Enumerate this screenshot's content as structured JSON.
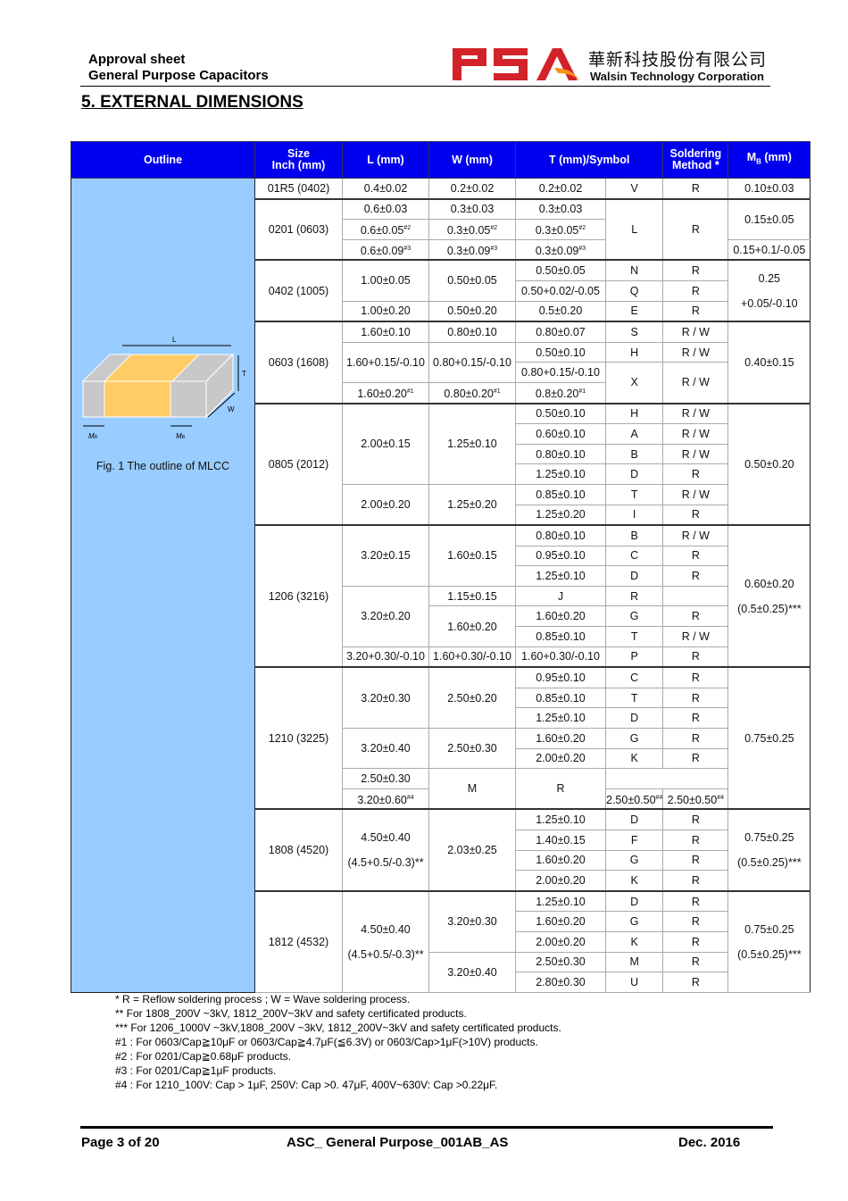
{
  "header": {
    "line1": "Approval sheet",
    "line2": "General Purpose Capacitors",
    "logo_text": "PSA",
    "company_cn": "華新科技股份有限公司",
    "company_en": "Walsin Technology Corporation"
  },
  "section_title": "5. EXTERNAL DIMENSIONS",
  "columns": {
    "outline": "Outline",
    "size1": "Size",
    "size2": "Inch (mm)",
    "L": "L (mm)",
    "W": "W (mm)",
    "T": "T (mm)/Symbol",
    "sold1": "Soldering",
    "sold2": "Method *",
    "mb": "M",
    "mb_sub": "B",
    "mb_unit": " (mm)"
  },
  "figure": {
    "caption": "Fig. 1 The outline of MLCC",
    "label_L": "L",
    "label_T": "T",
    "label_W": "W",
    "label_MB": "M",
    "label_MB_sub": "B"
  },
  "groups": [
    {
      "s": [
        {
          "t": "01R5 (0402)"
        }
      ],
      "L": [
        {
          "t": "0.4±0.02"
        }
      ],
      "W": [
        {
          "t": "0.2±0.02"
        }
      ],
      "T": [
        {
          "t": "0.2±0.02"
        }
      ],
      "Y": [
        {
          "t": "V"
        }
      ],
      "M": [
        {
          "t": "R"
        }
      ],
      "B": [
        {
          "t": "0.10±0.03"
        }
      ]
    },
    {
      "s": [
        {
          "t": "0201 (0603)"
        }
      ],
      "L": [
        {
          "t": "0.6±0.03"
        },
        {
          "t": "0.6±0.05",
          "n": "#2"
        },
        {
          "t": "0.6±0.09",
          "n": "#3"
        }
      ],
      "W": [
        {
          "t": "0.3±0.03"
        },
        {
          "t": "0.3±0.05",
          "n": "#2"
        },
        {
          "t": "0.3±0.09",
          "n": "#3"
        }
      ],
      "T": [
        {
          "t": "0.3±0.03"
        },
        {
          "t": "0.3±0.05",
          "n": "#2"
        },
        {
          "t": "0.3±0.09",
          "n": "#3"
        }
      ],
      "Y": [
        {
          "t": "L"
        }
      ],
      "M": [
        {
          "t": "R"
        }
      ],
      "B": [
        {
          "t": "0.15±0.05"
        },
        {
          "t": "0.15+0.1/-0.05"
        }
      ]
    },
    {
      "s": [
        {
          "t": "0402 (1005)"
        }
      ],
      "L": [
        {
          "t": "1.00±0.05"
        },
        {
          "t": "1.00±0.20"
        }
      ],
      "W": [
        {
          "t": "0.50±0.05"
        },
        {
          "t": "0.50±0.20"
        }
      ],
      "T": [
        {
          "t": "0.50±0.05"
        },
        {
          "t": "0.50+0.02/-0.05"
        },
        {
          "t": "0.5±0.20"
        }
      ],
      "Y": [
        {
          "t": "N"
        },
        {
          "t": "Q"
        },
        {
          "t": "E"
        }
      ],
      "M": [
        {
          "t": "R"
        },
        {
          "t": "R"
        },
        {
          "t": "R"
        }
      ],
      "B": [
        {
          "t": "0.25",
          "t2": "+0.05/-0.10"
        }
      ]
    },
    {
      "s": [
        {
          "t": "0603 (1608)"
        }
      ],
      "L": [
        {
          "t": "1.60±0.10"
        },
        {
          "t": "1.60+0.15/-0.10"
        },
        {
          "t": "1.60±0.20",
          "n": "#1"
        }
      ],
      "W": [
        {
          "t": "0.80±0.10"
        },
        {
          "t": "0.80+0.15/-0.10"
        },
        {
          "t": "0.80±0.20",
          "n": "#1"
        }
      ],
      "T": [
        {
          "t": "0.80±0.07"
        },
        {
          "t": "0.50±0.10"
        },
        {
          "t": "0.80+0.15/-0.10"
        },
        {
          "t": "0.8±0.20",
          "n": "#1"
        }
      ],
      "Y": [
        {
          "t": "S"
        },
        {
          "t": "H"
        },
        {
          "t": "X"
        }
      ],
      "M": [
        {
          "t": "R / W"
        },
        {
          "t": "R / W"
        },
        {
          "t": "R / W"
        }
      ],
      "B": [
        {
          "t": "0.40±0.15"
        }
      ]
    },
    {
      "s": [
        {
          "t": "0805 (2012)"
        }
      ],
      "L": [
        {
          "t": "2.00±0.15"
        },
        {
          "t": "2.00±0.20"
        }
      ],
      "W": [
        {
          "t": "1.25±0.10"
        },
        {
          "t": "1.25±0.20"
        }
      ],
      "T": [
        {
          "t": "0.50±0.10"
        },
        {
          "t": "0.60±0.10"
        },
        {
          "t": "0.80±0.10"
        },
        {
          "t": "1.25±0.10"
        },
        {
          "t": "0.85±0.10"
        },
        {
          "t": "1.25±0.20"
        }
      ],
      "Y": [
        {
          "t": "H"
        },
        {
          "t": "A"
        },
        {
          "t": "B"
        },
        {
          "t": "D"
        },
        {
          "t": "T"
        },
        {
          "t": "I"
        }
      ],
      "M": [
        {
          "t": "R / W"
        },
        {
          "t": "R / W"
        },
        {
          "t": "R / W"
        },
        {
          "t": "R"
        },
        {
          "t": "R / W"
        },
        {
          "t": "R"
        }
      ],
      "B": [
        {
          "t": "0.50±0.20"
        }
      ]
    },
    {
      "s": [
        {
          "t": "1206 (3216)"
        }
      ],
      "L": [
        {
          "t": "3.20±0.15"
        },
        {
          "t": "3.20±0.20"
        },
        {
          "t": "3.20+0.30/-0.10"
        }
      ],
      "W": [
        {
          "t": "1.60±0.15"
        },
        {
          "t": "1.60±0.20"
        },
        {
          "t": "1.60+0.30/-0.10"
        }
      ],
      "T": [
        {
          "t": "0.80±0.10"
        },
        {
          "t": "0.95±0.10"
        },
        {
          "t": "1.25±0.10"
        },
        {
          "t": "1.15±0.15"
        },
        {
          "t": "1.60±0.20"
        },
        {
          "t": "0.85±0.10"
        },
        {
          "t": "1.60+0.30/-0.10"
        }
      ],
      "Y": [
        {
          "t": "B"
        },
        {
          "t": "C"
        },
        {
          "t": "D"
        },
        {
          "t": "J"
        },
        {
          "t": "G"
        },
        {
          "t": "T"
        },
        {
          "t": "P"
        }
      ],
      "M": [
        {
          "t": "R / W"
        },
        {
          "t": "R"
        },
        {
          "t": "R"
        },
        {
          "t": "R"
        },
        {
          "t": "R"
        },
        {
          "t": "R / W"
        },
        {
          "t": "R"
        }
      ],
      "B": [
        {
          "t": "0.60±0.20",
          "t2": "(0.5±0.25)***"
        }
      ]
    },
    {
      "s": [
        {
          "t": "1210 (3225)"
        }
      ],
      "L": [
        {
          "t": "3.20±0.30"
        },
        {
          "t": "3.20±0.40"
        },
        {
          "t": "3.20±0.60",
          "n": "#4"
        }
      ],
      "W": [
        {
          "t": "2.50±0.20"
        },
        {
          "t": "2.50±0.30"
        },
        {
          "t": "2.50±0.50",
          "n": "#4"
        }
      ],
      "T": [
        {
          "t": "0.95±0.10"
        },
        {
          "t": "0.85±0.10"
        },
        {
          "t": "1.25±0.10"
        },
        {
          "t": "1.60±0.20"
        },
        {
          "t": "2.00±0.20"
        },
        {
          "t": "2.50±0.30"
        },
        {
          "t": "2.50±0.50",
          "n": "#4"
        }
      ],
      "Y": [
        {
          "t": "C"
        },
        {
          "t": "T"
        },
        {
          "t": "D"
        },
        {
          "t": "G"
        },
        {
          "t": "K"
        },
        {
          "t": "M"
        }
      ],
      "M": [
        {
          "t": "R"
        },
        {
          "t": "R"
        },
        {
          "t": "R"
        },
        {
          "t": "R"
        },
        {
          "t": "R"
        },
        {
          "t": "R"
        }
      ],
      "B": [
        {
          "t": "0.75±0.25"
        }
      ]
    },
    {
      "s": [
        {
          "t": "1808 (4520)"
        }
      ],
      "L": [
        {
          "t": "4.50±0.40",
          "t2": "(4.5+0.5/-0.3)**"
        }
      ],
      "W": [
        {
          "t": "2.03±0.25"
        }
      ],
      "T": [
        {
          "t": "1.25±0.10"
        },
        {
          "t": "1.40±0.15"
        },
        {
          "t": "1.60±0.20"
        },
        {
          "t": "2.00±0.20"
        }
      ],
      "Y": [
        {
          "t": "D"
        },
        {
          "t": "F"
        },
        {
          "t": "G"
        },
        {
          "t": "K"
        }
      ],
      "M": [
        {
          "t": "R"
        },
        {
          "t": "R"
        },
        {
          "t": "R"
        },
        {
          "t": "R"
        }
      ],
      "B": [
        {
          "t": "0.75±0.25",
          "t2": "(0.5±0.25)***"
        }
      ]
    },
    {
      "s": [
        {
          "t": "1812 (4532)"
        }
      ],
      "L": [
        {
          "t": "4.50±0.40",
          "t2": "(4.5+0.5/-0.3)**"
        }
      ],
      "W": [
        {
          "t": "3.20±0.30"
        },
        {
          "t": "3.20±0.40"
        }
      ],
      "T": [
        {
          "t": "1.25±0.10"
        },
        {
          "t": "1.60±0.20"
        },
        {
          "t": "2.00±0.20"
        },
        {
          "t": "2.50±0.30"
        },
        {
          "t": "2.80±0.30"
        }
      ],
      "Y": [
        {
          "t": "D"
        },
        {
          "t": "G"
        },
        {
          "t": "K"
        },
        {
          "t": "M"
        },
        {
          "t": "U"
        }
      ],
      "M": [
        {
          "t": "R"
        },
        {
          "t": "R"
        },
        {
          "t": "R"
        },
        {
          "t": "R"
        },
        {
          "t": "R"
        }
      ],
      "B": [
        {
          "t": "0.75±0.25",
          "t2": "(0.5±0.25)***"
        }
      ]
    }
  ],
  "notes": [
    "* R = Reflow soldering process ; W = Wave soldering process.",
    "** For 1808_200V ~3kV, 1812_200V~3kV and safety certificated products.",
    "*** For 1206_1000V ~3kV,1808_200V ~3kV, 1812_200V~3kV and safety certificated products.",
    "#1 : For 0603/Cap≧10μF or 0603/Cap≧4.7μF(≦6.3V) or 0603/Cap>1μF(>10V) products.",
    "#2 : For 0201/Cap≧0.68μF products.",
    "#3 : For 0201/Cap≧1μF products.",
    "#4 : For 1210_100V: Cap > 1μF, 250V: Cap >0. 47μF, 400V~630V: Cap >0.22μF."
  ],
  "footer": {
    "page": "Page 3 of 20",
    "doc": "ASC_ General Purpose_001AB_AS",
    "date": "Dec. 2016"
  },
  "colors": {
    "header_blue": "#0000ee",
    "outline_bg": "#99ccff",
    "chip_body": "#ffcc66",
    "chip_term": "#c8c8c8",
    "logo_red": "#d2232a",
    "logo_orange": "#f7941d"
  }
}
